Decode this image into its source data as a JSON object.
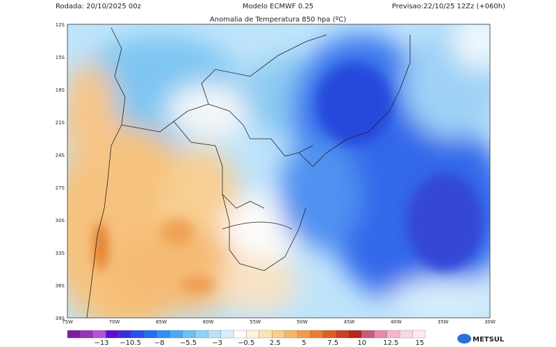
{
  "header": {
    "run": "Rodada: 20/10/2025 00z",
    "model": "Modelo ECMWF 0.25",
    "forecast": "Previsao:22/10/25 12Zz (+060h)",
    "title": "Anomalia de Temperatura 850 hpa (ºC)"
  },
  "map": {
    "lat_labels": [
      "12S",
      "15S",
      "18S",
      "21S",
      "24S",
      "27S",
      "30S",
      "33S",
      "36S",
      "39S"
    ],
    "lon_labels": [
      "75W",
      "70W",
      "65W",
      "60W",
      "55W",
      "50W",
      "45W",
      "40W",
      "35W",
      "30W"
    ]
  },
  "colorbar": {
    "labels": [
      "−13",
      "−10.5",
      "−8",
      "−5.5",
      "−3",
      "−0.5",
      "2.5",
      "5",
      "7.5",
      "10",
      "12.5",
      "15"
    ]
  },
  "logo": {
    "text": "METSUL"
  }
}
